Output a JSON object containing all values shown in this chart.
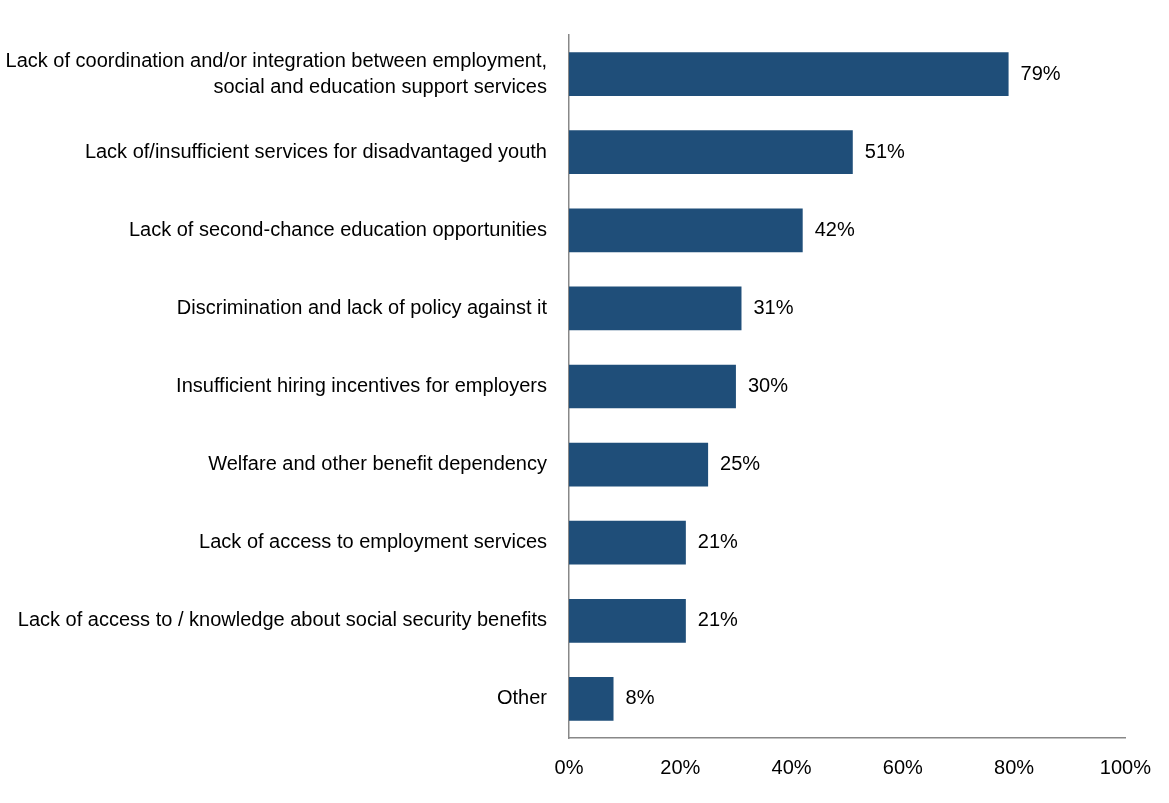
{
  "chart_data": {
    "type": "bar",
    "orientation": "horizontal",
    "categories": [
      "Lack of coordination and/or integration between employment, social and education support services",
      "Lack of/insufficient services for disadvantaged youth",
      "Lack of second-chance education opportunities",
      "Discrimination and lack of policy against it",
      "Insufficient hiring incentives for employers",
      "Welfare and other benefit dependency",
      "Lack of access to employment services",
      "Lack of access to / knowledge about social security benefits",
      "Other"
    ],
    "values": [
      79,
      51,
      42,
      31,
      30,
      25,
      21,
      21,
      8
    ],
    "value_labels": [
      "79%",
      "51%",
      "42%",
      "31%",
      "30%",
      "25%",
      "21%",
      "21%",
      "8%"
    ],
    "color": "#1f4e79",
    "xlim": [
      0,
      100
    ],
    "xticks": [
      {
        "value": 0,
        "label": "0%"
      },
      {
        "value": 20,
        "label": "20%"
      },
      {
        "value": 40,
        "label": "40%"
      },
      {
        "value": 60,
        "label": "60%"
      },
      {
        "value": 80,
        "label": "80%"
      },
      {
        "value": 100,
        "label": "100%"
      }
    ],
    "grid": false,
    "legend": false
  }
}
